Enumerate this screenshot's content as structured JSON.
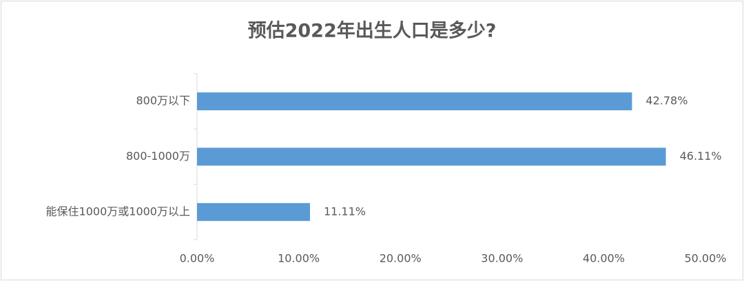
{
  "chart_data": {
    "type": "hbar",
    "title": "预估2022年出生人口是多少?",
    "categories": [
      "800万以下",
      "800-1000万",
      "能保住1000万或1000万以上"
    ],
    "values": [
      42.78,
      46.11,
      11.11
    ],
    "value_labels": [
      "42.78%",
      "46.11%",
      "11.11%"
    ],
    "color": "#5b9bd5",
    "xlim": [
      0,
      50
    ],
    "xticks": [
      {
        "value": 0,
        "label": "0.00%"
      },
      {
        "value": 10,
        "label": "10.00%"
      },
      {
        "value": 20,
        "label": "20.00%"
      },
      {
        "value": 30,
        "label": "30.00%"
      },
      {
        "value": 40,
        "label": "40.00%"
      },
      {
        "value": 50,
        "label": "50.00%"
      }
    ],
    "grid": false
  }
}
